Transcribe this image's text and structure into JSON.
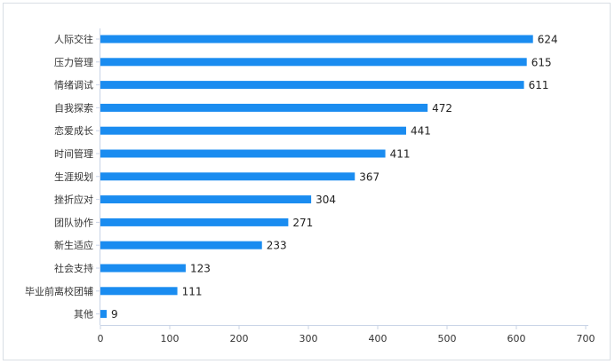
{
  "chart_data": {
    "type": "bar",
    "orientation": "horizontal",
    "categories": [
      "人际交往",
      "压力管理",
      "情绪调试",
      "自我探索",
      "恋爱成长",
      "时间管理",
      "生涯规划",
      "挫折应对",
      "团队协作",
      "新生适应",
      "社会支持",
      "毕业前离校团辅",
      "其他"
    ],
    "values": [
      624,
      615,
      611,
      472,
      441,
      411,
      367,
      304,
      271,
      233,
      123,
      111,
      9
    ],
    "xlim": [
      0,
      700
    ],
    "xticks": [
      0,
      100,
      200,
      300,
      400,
      500,
      600,
      700
    ],
    "bar_color": "#1a8cf0",
    "axis_color": "#c8d3e6",
    "grid": false,
    "legend": "none",
    "title": "",
    "xlabel": "",
    "ylabel": ""
  }
}
